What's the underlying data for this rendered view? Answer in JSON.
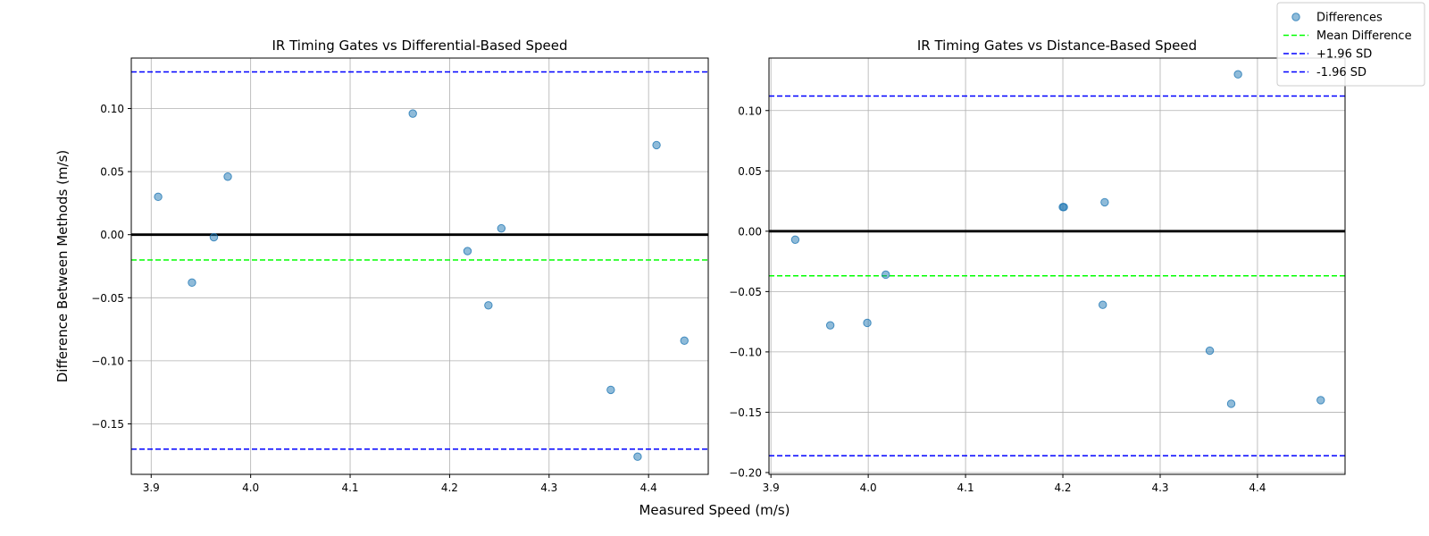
{
  "figure": {
    "xlabel": "Measured Speed (m/s)",
    "ylabel": "Difference Between Methods (m/s)"
  },
  "legend": {
    "placement": "top-right",
    "entries": [
      {
        "label": "Differences",
        "kind": "marker",
        "color": "#1f77b4"
      },
      {
        "label": "Mean Difference",
        "kind": "dashed-line",
        "color": "#00ff00"
      },
      {
        "label": "+1.96 SD",
        "kind": "dashed-line",
        "color": "#0000ff"
      },
      {
        "label": "-1.96 SD",
        "kind": "dashed-line",
        "color": "#0000ff"
      }
    ]
  },
  "chart_data": [
    {
      "type": "scatter",
      "title": "IR Timing Gates vs Differential-Based Speed",
      "xlabel": "",
      "ylabel": "Difference Between Methods (m/s)",
      "xlim": [
        3.88,
        4.46
      ],
      "ylim": [
        -0.19,
        0.14
      ],
      "xticks": [
        3.9,
        4.0,
        4.1,
        4.2,
        4.3,
        4.4
      ],
      "xtick_labels": [
        "3.9",
        "4.0",
        "4.1",
        "4.2",
        "4.3",
        "4.4"
      ],
      "yticks": [
        -0.15,
        -0.1,
        -0.05,
        0.0,
        0.05,
        0.1
      ],
      "ytick_labels": [
        "−0.15",
        "−0.10",
        "−0.05",
        "0.00",
        "0.05",
        "0.10"
      ],
      "grid": true,
      "points": [
        {
          "x": 3.907,
          "y": 0.03
        },
        {
          "x": 3.941,
          "y": -0.038
        },
        {
          "x": 3.963,
          "y": -0.002
        },
        {
          "x": 3.977,
          "y": 0.046
        },
        {
          "x": 4.163,
          "y": 0.096
        },
        {
          "x": 4.218,
          "y": -0.013
        },
        {
          "x": 4.239,
          "y": -0.056
        },
        {
          "x": 4.252,
          "y": 0.005
        },
        {
          "x": 4.362,
          "y": -0.123
        },
        {
          "x": 4.389,
          "y": -0.176
        },
        {
          "x": 4.408,
          "y": 0.071
        },
        {
          "x": 4.436,
          "y": -0.084
        }
      ],
      "zero_line": 0.0,
      "mean_difference": -0.02,
      "upper_limit": 0.129,
      "lower_limit": -0.17,
      "colors": {
        "points": "#1f77b4",
        "mean": "#00ff00",
        "limits": "#0000ff",
        "zero": "#000000"
      }
    },
    {
      "type": "scatter",
      "title": "IR Timing Gates vs Distance-Based Speed",
      "xlabel": "",
      "ylabel": "",
      "xlim": [
        3.898,
        4.49
      ],
      "ylim": [
        -0.2015,
        0.1435
      ],
      "xticks": [
        3.9,
        4.0,
        4.1,
        4.2,
        4.3,
        4.4
      ],
      "xtick_labels": [
        "3.9",
        "4.0",
        "4.1",
        "4.2",
        "4.3",
        "4.4"
      ],
      "yticks": [
        -0.2,
        -0.15,
        -0.1,
        -0.05,
        0.0,
        0.05,
        0.1
      ],
      "ytick_labels": [
        "−0.20",
        "−0.15",
        "−0.10",
        "−0.05",
        "0.00",
        "0.05",
        "0.10"
      ],
      "grid": true,
      "points": [
        {
          "x": 3.925,
          "y": -0.007
        },
        {
          "x": 3.961,
          "y": -0.078
        },
        {
          "x": 3.999,
          "y": -0.076
        },
        {
          "x": 4.018,
          "y": -0.036
        },
        {
          "x": 4.2,
          "y": 0.02
        },
        {
          "x": 4.201,
          "y": 0.02
        },
        {
          "x": 4.241,
          "y": -0.061
        },
        {
          "x": 4.243,
          "y": 0.024
        },
        {
          "x": 4.351,
          "y": -0.099
        },
        {
          "x": 4.373,
          "y": -0.143
        },
        {
          "x": 4.38,
          "y": 0.13
        },
        {
          "x": 4.465,
          "y": -0.14
        }
      ],
      "zero_line": 0.0,
      "mean_difference": -0.037,
      "upper_limit": 0.112,
      "lower_limit": -0.186,
      "colors": {
        "points": "#1f77b4",
        "mean": "#00ff00",
        "limits": "#0000ff",
        "zero": "#000000"
      }
    }
  ]
}
